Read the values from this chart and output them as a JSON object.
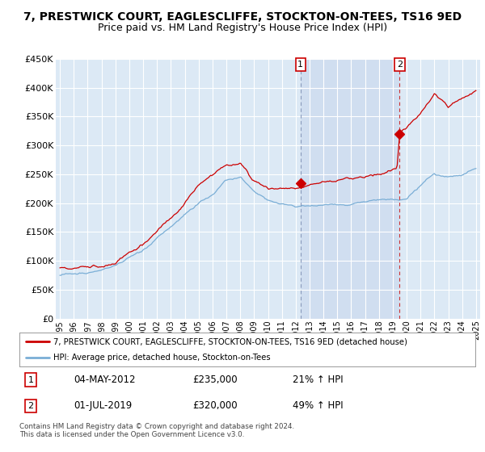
{
  "title": "7, PRESTWICK COURT, EAGLESCLIFFE, STOCKTON-ON-TEES, TS16 9ED",
  "subtitle": "Price paid vs. HM Land Registry's House Price Index (HPI)",
  "legend_line1": "7, PRESTWICK COURT, EAGLESCLIFFE, STOCKTON-ON-TEES, TS16 9ED (detached house)",
  "legend_line2": "HPI: Average price, detached house, Stockton-on-Tees",
  "sale1_date": "04-MAY-2012",
  "sale1_price": "£235,000",
  "sale1_pct": "21% ↑ HPI",
  "sale1_year": 2012.35,
  "sale1_value": 235000,
  "sale2_date": "01-JUL-2019",
  "sale2_price": "£320,000",
  "sale2_pct": "49% ↑ HPI",
  "sale2_year": 2019.5,
  "sale2_value": 320000,
  "ylim": [
    0,
    450000
  ],
  "yticks": [
    0,
    50000,
    100000,
    150000,
    200000,
    250000,
    300000,
    350000,
    400000,
    450000
  ],
  "plot_bg": "#dce9f5",
  "shade_color": "#c8d8ee",
  "red_color": "#cc0000",
  "blue_color": "#7aaed6",
  "marker_color": "#cc0000",
  "footnote": "Contains HM Land Registry data © Crown copyright and database right 2024.\nThis data is licensed under the Open Government Licence v3.0.",
  "title_fontsize": 10,
  "subtitle_fontsize": 9
}
